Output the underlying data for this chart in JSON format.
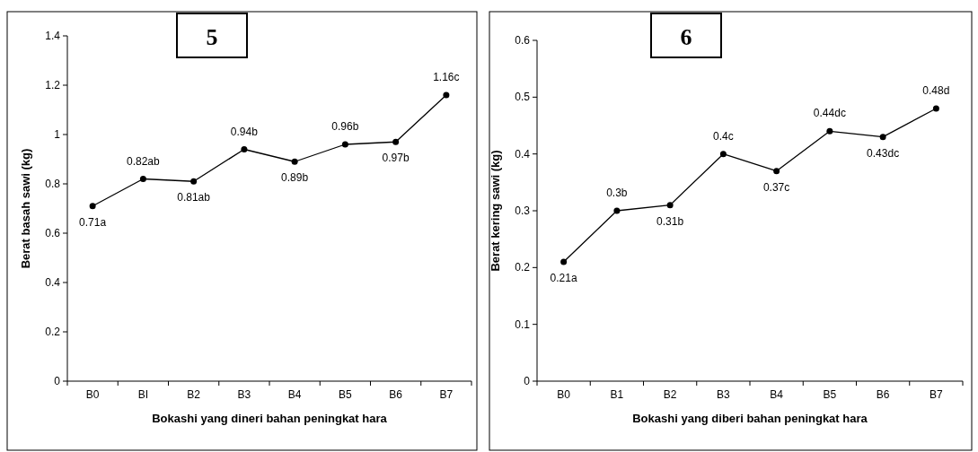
{
  "chart_data": [
    {
      "type": "line",
      "title": "5",
      "xlabel": "Bokashi yang dineri bahan peningkat hara",
      "ylabel": "Berat basah sawi (kg)",
      "categories": [
        "B0",
        "BI",
        "B2",
        "B3",
        "B4",
        "B5",
        "B6",
        "B7"
      ],
      "series": [
        {
          "color": "#000000",
          "values": [
            0.71,
            0.82,
            0.81,
            0.94,
            0.89,
            0.96,
            0.97,
            1.16
          ],
          "value_labels": [
            "0.71a",
            "0.82ab",
            "0.81ab",
            "0.94b",
            "0.89b",
            "0.96b",
            "0.97b",
            "1.16c"
          ]
        }
      ],
      "ylim": [
        0,
        1.4
      ],
      "yticks": [
        0,
        0.2,
        0.4,
        0.6,
        0.8,
        1,
        1.2,
        1.4
      ],
      "marker": "circle",
      "line_style": "solid",
      "grid": false
    },
    {
      "type": "line",
      "title": "6",
      "xlabel": "Bokashi yang diberi bahan peningkat hara",
      "ylabel": "Berat kering sawi (kg)",
      "categories": [
        "B0",
        "B1",
        "B2",
        "B3",
        "B4",
        "B5",
        "B6",
        "B7"
      ],
      "series": [
        {
          "color": "#000000",
          "values": [
            0.21,
            0.3,
            0.31,
            0.4,
            0.37,
            0.44,
            0.43,
            0.48
          ],
          "value_labels": [
            "0.21a",
            "0.3b",
            "0.31b",
            "0.4c",
            "0.37c",
            "0.44dc",
            "0.43dc",
            "0.48d"
          ]
        }
      ],
      "ylim": [
        0,
        0.6
      ],
      "yticks": [
        0,
        0.1,
        0.2,
        0.3,
        0.4,
        0.5,
        0.6
      ],
      "marker": "circle",
      "line_style": "solid",
      "grid": false
    }
  ]
}
